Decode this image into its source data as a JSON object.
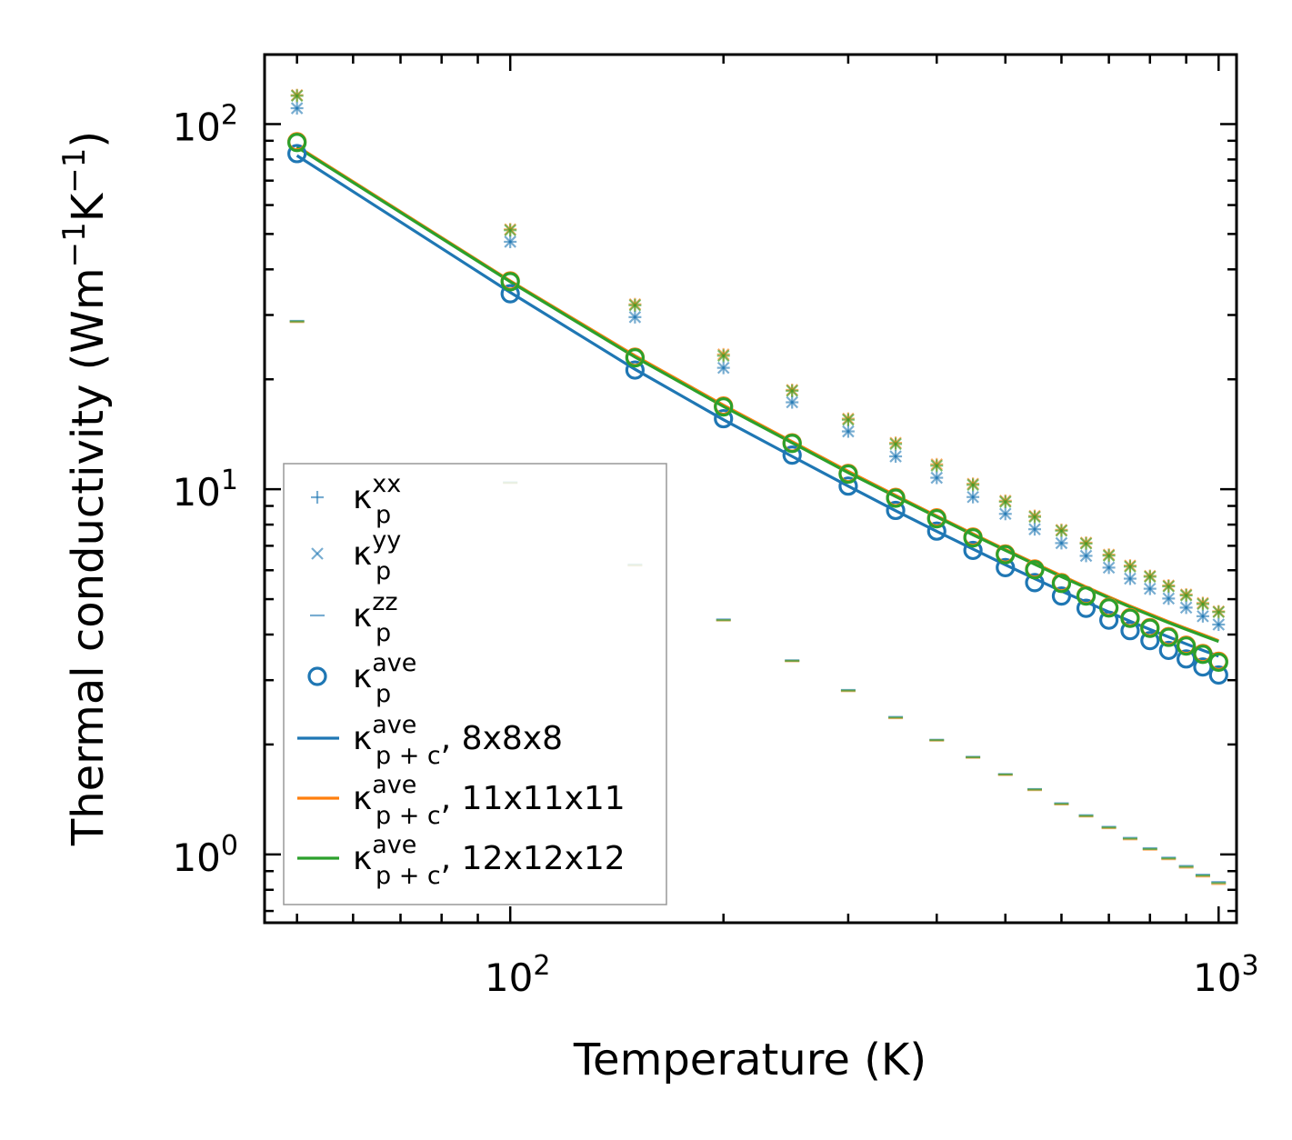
{
  "chart_data": {
    "type": "scatter",
    "xscale": "log",
    "yscale": "log",
    "xlim": [
      45,
      1060
    ],
    "ylim": [
      0.65,
      155
    ],
    "xlabel": "Temperature (K)",
    "ylabel": "Thermal conductivity (Wm⁻¹K⁻¹)",
    "ylabel_parts": {
      "main": "Thermal conductivity (Wm",
      "sup1": "−1",
      "mid": "K",
      "sup2": "−1",
      "end": ")"
    },
    "xticks": [
      {
        "value": 100,
        "base": "10",
        "exp": "2"
      },
      {
        "value": 1000,
        "base": "10",
        "exp": "3"
      }
    ],
    "yticks": [
      {
        "value": 1,
        "base": "10",
        "exp": "0"
      },
      {
        "value": 10,
        "base": "10",
        "exp": "1"
      },
      {
        "value": 100,
        "base": "10",
        "exp": "2"
      }
    ],
    "colors": {
      "blue": "#1f77b4",
      "orange": "#ff7f0e",
      "green": "#2ca02c"
    },
    "x": [
      50,
      100,
      150,
      200,
      250,
      300,
      350,
      400,
      450,
      500,
      550,
      600,
      650,
      700,
      750,
      800,
      850,
      900,
      950,
      1000
    ],
    "series": [
      {
        "name": "κp xx (8x8x8)",
        "marker": "plus",
        "color": "#1f77b4",
        "values": [
          110.5,
          47.6,
          29.6,
          21.5,
          17.3,
          14.4,
          12.3,
          10.75,
          9.52,
          8.56,
          7.77,
          7.12,
          6.57,
          6.1,
          5.69,
          5.34,
          5.02,
          4.74,
          4.49,
          4.26
        ]
      },
      {
        "name": "κp yy (8x8x8)",
        "marker": "x",
        "color": "#1f77b4",
        "values": [
          110.5,
          47.6,
          29.6,
          21.5,
          17.3,
          14.4,
          12.3,
          10.75,
          9.52,
          8.56,
          7.77,
          7.12,
          6.57,
          6.1,
          5.69,
          5.34,
          5.02,
          4.74,
          4.49,
          4.26
        ]
      },
      {
        "name": "κp xx (11x11x11)",
        "marker": "plus",
        "color": "#ff7f0e",
        "values": [
          120,
          51.5,
          32.1,
          23.4,
          18.7,
          15.6,
          13.4,
          11.7,
          10.35,
          9.3,
          8.45,
          7.74,
          7.14,
          6.62,
          6.18,
          5.79,
          5.45,
          5.15,
          4.88,
          4.63
        ]
      },
      {
        "name": "κp yy (11x11x11)",
        "marker": "x",
        "color": "#ff7f0e",
        "values": [
          120,
          51.5,
          32.1,
          23.4,
          18.7,
          15.6,
          13.4,
          11.7,
          10.35,
          9.3,
          8.45,
          7.74,
          7.14,
          6.62,
          6.18,
          5.79,
          5.45,
          5.15,
          4.88,
          4.63
        ]
      },
      {
        "name": "κp xx (12x12x12)",
        "marker": "plus",
        "color": "#2ca02c",
        "values": [
          119.5,
          51.2,
          31.9,
          23.2,
          18.6,
          15.5,
          13.3,
          11.6,
          10.28,
          9.24,
          8.4,
          7.7,
          7.1,
          6.58,
          6.14,
          5.76,
          5.42,
          5.12,
          4.85,
          4.61
        ]
      },
      {
        "name": "κp yy (12x12x12)",
        "marker": "x",
        "color": "#2ca02c",
        "values": [
          119.5,
          51.2,
          31.9,
          23.2,
          18.6,
          15.5,
          13.3,
          11.6,
          10.28,
          9.24,
          8.4,
          7.7,
          7.1,
          6.58,
          6.14,
          5.76,
          5.42,
          5.12,
          4.85,
          4.61
        ]
      },
      {
        "name": "κp zz (8x8x8)",
        "marker": "hline",
        "color": "#1f77b4",
        "values": [
          28.9,
          10.45,
          6.22,
          4.4,
          3.4,
          2.82,
          2.38,
          2.06,
          1.85,
          1.66,
          1.51,
          1.38,
          1.28,
          1.19,
          1.11,
          1.04,
          0.98,
          0.93,
          0.88,
          0.84
        ]
      },
      {
        "name": "κp zz (11x11x11)",
        "marker": "hline",
        "color": "#ff7f0e",
        "values": [
          28.7,
          10.4,
          6.18,
          4.37,
          3.38,
          2.8,
          2.36,
          2.05,
          1.84,
          1.65,
          1.5,
          1.37,
          1.27,
          1.18,
          1.1,
          1.03,
          0.97,
          0.92,
          0.87,
          0.83
        ]
      },
      {
        "name": "κp zz (12x12x12)",
        "marker": "hline",
        "color": "#2ca02c",
        "values": [
          28.8,
          10.42,
          6.2,
          4.38,
          3.39,
          2.81,
          2.37,
          2.055,
          1.845,
          1.655,
          1.505,
          1.375,
          1.275,
          1.185,
          1.105,
          1.035,
          0.975,
          0.925,
          0.875,
          0.835
        ]
      },
      {
        "name": "κp ave (8x8x8)",
        "marker": "circle",
        "color": "#1f77b4",
        "values": [
          83,
          34.3,
          21.2,
          15.6,
          12.4,
          10.2,
          8.75,
          7.68,
          6.8,
          6.1,
          5.55,
          5.1,
          4.72,
          4.38,
          4.1,
          3.85,
          3.62,
          3.43,
          3.26,
          3.1
        ]
      },
      {
        "name": "κp ave (11x11x11)",
        "marker": "circle",
        "color": "#ff7f0e",
        "values": [
          89.5,
          37.2,
          23,
          16.9,
          13.4,
          11.05,
          9.5,
          8.35,
          7.4,
          6.65,
          6.05,
          5.55,
          5.12,
          4.75,
          4.45,
          4.18,
          3.95,
          3.74,
          3.55,
          3.38
        ]
      },
      {
        "name": "κp ave (12x12x12)",
        "marker": "circle",
        "color": "#2ca02c",
        "values": [
          89,
          37,
          22.9,
          16.8,
          13.35,
          11.0,
          9.45,
          8.3,
          7.36,
          6.62,
          6.02,
          5.52,
          5.1,
          4.73,
          4.43,
          4.16,
          3.93,
          3.72,
          3.53,
          3.36
        ]
      },
      {
        "name": "κp+c ave 8x8x8",
        "marker": "line",
        "color": "#1f77b4",
        "values": [
          82,
          34.6,
          21.3,
          15.5,
          12.3,
          10.2,
          8.73,
          7.67,
          6.86,
          6.21,
          5.69,
          5.26,
          4.91,
          4.61,
          4.35,
          4.13,
          3.94,
          3.77,
          3.62,
          3.49
        ]
      },
      {
        "name": "κp+c ave 11x11x11",
        "marker": "line",
        "color": "#ff7f0e",
        "values": [
          87,
          37.2,
          23.2,
          17,
          13.5,
          11.2,
          9.62,
          8.45,
          7.55,
          6.84,
          6.27,
          5.8,
          5.4,
          5.07,
          4.79,
          4.55,
          4.34,
          4.16,
          4.0,
          3.85
        ]
      },
      {
        "name": "κp+c ave 12x12x12",
        "marker": "line",
        "color": "#2ca02c",
        "values": [
          86.5,
          37.0,
          23.0,
          16.85,
          13.4,
          11.1,
          9.55,
          8.4,
          7.5,
          6.8,
          6.23,
          5.76,
          5.37,
          5.04,
          4.76,
          4.52,
          4.31,
          4.13,
          3.97,
          3.83
        ]
      }
    ],
    "legend": {
      "position": "lower-left",
      "entries": [
        {
          "marker": "plus",
          "color": "#1f77b4",
          "sym": "κ",
          "sub": "p",
          "sup": "xx",
          "suffix": ""
        },
        {
          "marker": "x",
          "color": "#1f77b4",
          "sym": "κ",
          "sub": "p",
          "sup": "yy",
          "suffix": ""
        },
        {
          "marker": "hline",
          "color": "#1f77b4",
          "sym": "κ",
          "sub": "p",
          "sup": "zz",
          "suffix": ""
        },
        {
          "marker": "circle",
          "color": "#1f77b4",
          "sym": "κ",
          "sub": "p",
          "sup": "ave",
          "suffix": ""
        },
        {
          "marker": "line",
          "color": "#1f77b4",
          "sym": "κ",
          "sub": "p + c",
          "sup": "ave",
          "suffix": ", 8x8x8"
        },
        {
          "marker": "line",
          "color": "#ff7f0e",
          "sym": "κ",
          "sub": "p + c",
          "sup": "ave",
          "suffix": ", 11x11x11"
        },
        {
          "marker": "line",
          "color": "#2ca02c",
          "sym": "κ",
          "sub": "p + c",
          "sup": "ave",
          "suffix": ", 12x12x12"
        }
      ]
    }
  }
}
